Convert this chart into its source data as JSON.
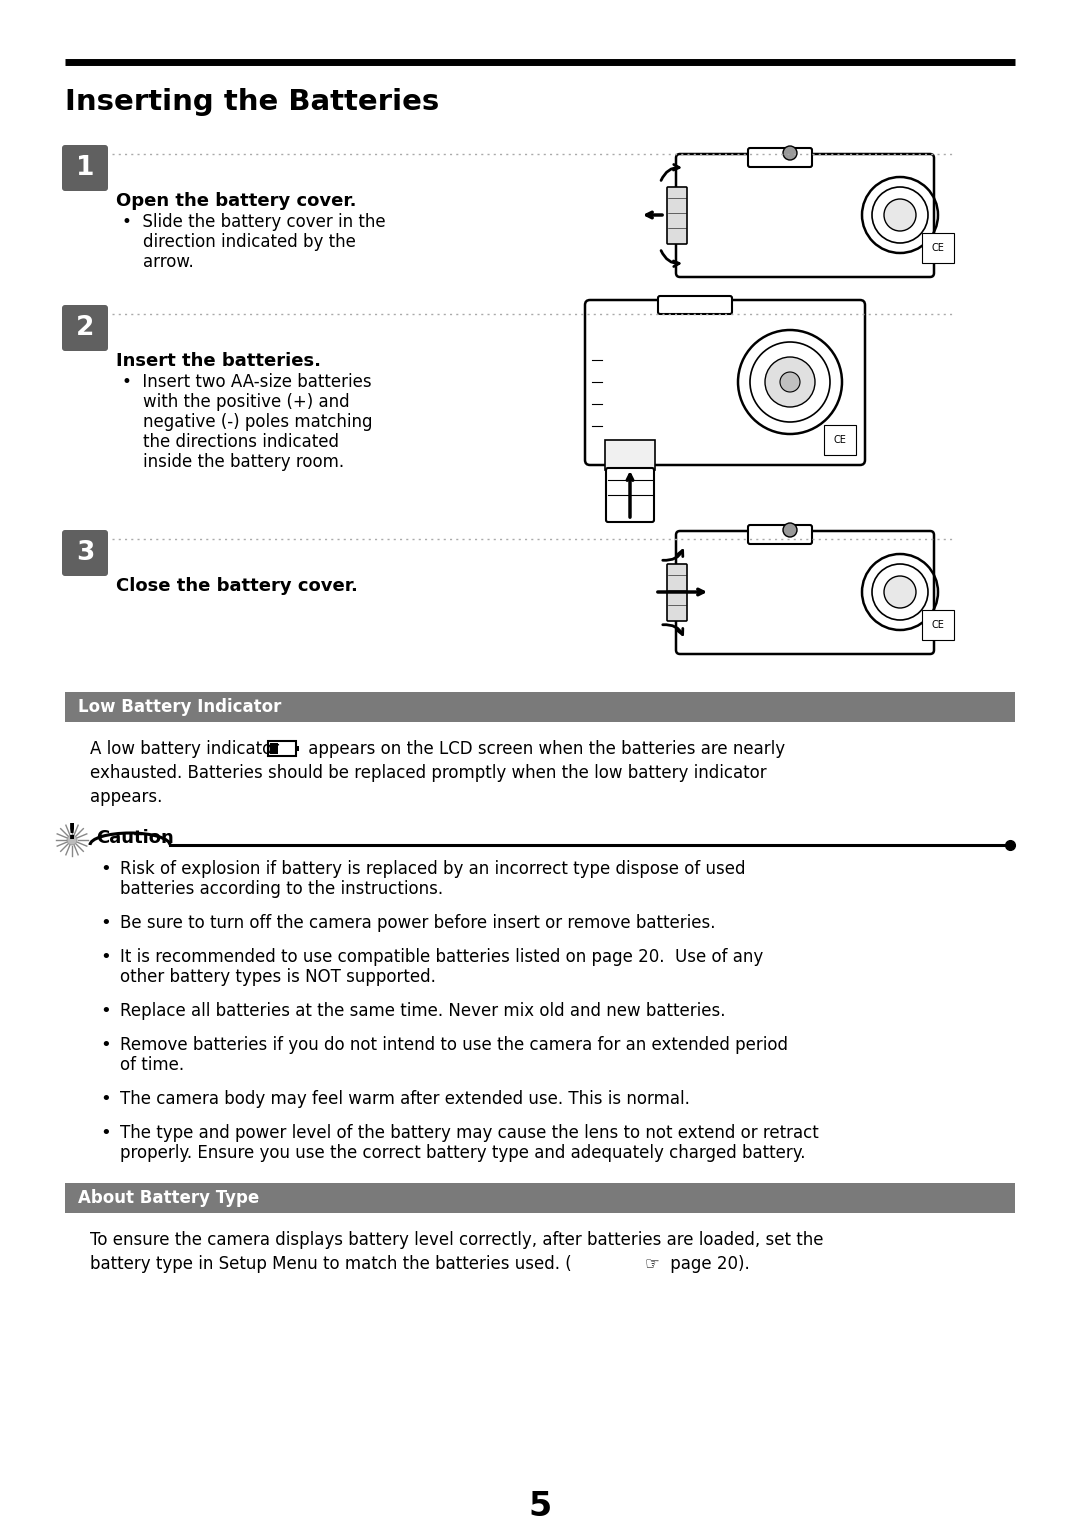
{
  "title": "Inserting the Batteries",
  "bg_color": "#ffffff",
  "page_number": "5",
  "step1_bold": "Open the battery cover.",
  "step1_bullet": "Slide the battery cover in the\ndirection indicated by the\narrow.",
  "step2_bold": "Insert the batteries.",
  "step2_bullet": "Insert two AA-size batteries\nwith the positive (+) and\nnegative (-) poles matching\nthe directions indicated\ninside the battery room.",
  "step3_bold": "Close the battery cover.",
  "low_battery_header": "Low Battery Indicator",
  "low_battery_line1_pre": "A low battery indicator",
  "low_battery_line1_post": " appears on the LCD screen when the batteries are nearly",
  "low_battery_line2": "exhausted. Batteries should be replaced promptly when the low battery indicator",
  "low_battery_line3": "appears.",
  "caution_title": "Caution",
  "caution_bullets": [
    "Risk of explosion if battery is replaced by an incorrect type dispose of used\nbatteries according to the instructions.",
    "Be sure to turn off the camera power before insert or remove batteries.",
    "It is recommended to use compatible batteries listed on page 20.  Use of any\nother battery types is NOT supported.",
    "Replace all batteries at the same time. Never mix old and new batteries.",
    "Remove batteries if you do not intend to use the camera for an extended period\nof time.",
    "The camera body may feel warm after extended use. This is normal.",
    "The type and power level of the battery may cause the lens to not extend or retract\nproperly. Ensure you use the correct battery type and adequately charged battery."
  ],
  "about_header": "About Battery Type",
  "about_line1": "To ensure the camera displays battery level correctly, after batteries are loaded, set the",
  "about_line2": "battery type in Setup Menu to match the batteries used. (",
  "about_line2_suffix": " page 20)."
}
